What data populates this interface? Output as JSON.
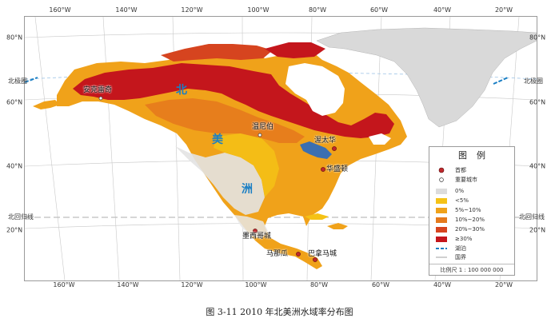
{
  "graticule": {
    "top": [
      "160°W",
      "140°W",
      "120°W",
      "100°W",
      "80°W",
      "60°W",
      "40°W",
      "20°W"
    ],
    "bottom": [
      "160°W",
      "140°W",
      "120°W",
      "100°W",
      "80°W",
      "60°W",
      "40°W",
      "20°W"
    ],
    "left": [
      "80°N",
      "60°N",
      "40°N",
      "20°N"
    ],
    "right": [
      "80°N",
      "60°N",
      "40°N",
      "20°N"
    ]
  },
  "reference_lines": {
    "arctic_circle_left": "北极圈",
    "arctic_circle_right": "北极圈",
    "tropic_left": "北回归线",
    "tropic_right": "北回归线"
  },
  "region_label": [
    "北",
    "美",
    "洲"
  ],
  "places": {
    "anchorage": "安克雷奇",
    "winnipeg": "温尼伯",
    "ottawa": "渥太华",
    "washington": "华盛顿",
    "mexico_city": "墨西哥城",
    "managua": "马那瓜",
    "panama_city": "巴拿马城"
  },
  "legend": {
    "title": "图例",
    "capital": "首都",
    "major_city": "重要城市",
    "classes": [
      {
        "label": "0%",
        "color": "#dcdcdc"
      },
      {
        "label": "<5%",
        "color": "#f5c216"
      },
      {
        "label": "5%~10%",
        "color": "#f0a21a"
      },
      {
        "label": "10%~20%",
        "color": "#e57a1d"
      },
      {
        "label": "20%~30%",
        "color": "#d6441f"
      },
      {
        "label": "≥30%",
        "color": "#c4161c"
      }
    ],
    "lake": "湖泊",
    "border": "国界",
    "scale": "比例尺 1 : 100 000 000"
  },
  "colors": {
    "ocean": "#ffffff",
    "greenland": "#d9d9d9",
    "lake": "#3b6fb0",
    "capital": "#c0282c"
  },
  "caption": "图 3-11  2010 年北美洲水域率分布图"
}
